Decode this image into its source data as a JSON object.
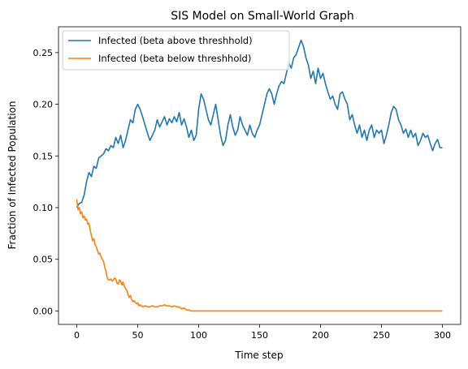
{
  "chart_data": {
    "type": "line",
    "title": "SIS Model on Small-World Graph",
    "xlabel": "Time step",
    "ylabel": "Fraction of Infected Population",
    "xlim": [
      -15,
      315
    ],
    "ylim": [
      -0.013,
      0.275
    ],
    "xticks": [
      0,
      50,
      100,
      150,
      200,
      250,
      300
    ],
    "xtick_labels": [
      "0",
      "50",
      "100",
      "150",
      "200",
      "250",
      "300"
    ],
    "yticks": [
      0.0,
      0.05,
      0.1,
      0.15,
      0.2,
      0.25
    ],
    "ytick_labels": [
      "0.00",
      "0.05",
      "0.10",
      "0.15",
      "0.20",
      "0.25"
    ],
    "grid": false,
    "legend_position": "top-left",
    "series": [
      {
        "name": "Infected (beta above threshhold)",
        "color": "#1f77b4",
        "points": [
          [
            0,
            0.1
          ],
          [
            2,
            0.104
          ],
          [
            4,
            0.105
          ],
          [
            6,
            0.112
          ],
          [
            8,
            0.125
          ],
          [
            10,
            0.134
          ],
          [
            12,
            0.13
          ],
          [
            14,
            0.14
          ],
          [
            16,
            0.138
          ],
          [
            18,
            0.148
          ],
          [
            20,
            0.15
          ],
          [
            22,
            0.152
          ],
          [
            24,
            0.157
          ],
          [
            26,
            0.155
          ],
          [
            28,
            0.16
          ],
          [
            30,
            0.158
          ],
          [
            32,
            0.168
          ],
          [
            34,
            0.162
          ],
          [
            36,
            0.17
          ],
          [
            38,
            0.158
          ],
          [
            40,
            0.165
          ],
          [
            42,
            0.175
          ],
          [
            44,
            0.185
          ],
          [
            46,
            0.182
          ],
          [
            48,
            0.195
          ],
          [
            50,
            0.2
          ],
          [
            52,
            0.195
          ],
          [
            54,
            0.188
          ],
          [
            56,
            0.18
          ],
          [
            58,
            0.172
          ],
          [
            60,
            0.165
          ],
          [
            62,
            0.17
          ],
          [
            64,
            0.175
          ],
          [
            66,
            0.185
          ],
          [
            68,
            0.178
          ],
          [
            70,
            0.183
          ],
          [
            72,
            0.188
          ],
          [
            74,
            0.18
          ],
          [
            76,
            0.186
          ],
          [
            78,
            0.182
          ],
          [
            80,
            0.188
          ],
          [
            82,
            0.183
          ],
          [
            84,
            0.192
          ],
          [
            86,
            0.18
          ],
          [
            88,
            0.186
          ],
          [
            90,
            0.178
          ],
          [
            92,
            0.168
          ],
          [
            94,
            0.175
          ],
          [
            96,
            0.165
          ],
          [
            98,
            0.17
          ],
          [
            100,
            0.195
          ],
          [
            102,
            0.21
          ],
          [
            104,
            0.205
          ],
          [
            106,
            0.195
          ],
          [
            108,
            0.185
          ],
          [
            110,
            0.18
          ],
          [
            112,
            0.19
          ],
          [
            114,
            0.2
          ],
          [
            116,
            0.185
          ],
          [
            118,
            0.17
          ],
          [
            120,
            0.16
          ],
          [
            122,
            0.165
          ],
          [
            124,
            0.18
          ],
          [
            126,
            0.19
          ],
          [
            128,
            0.178
          ],
          [
            130,
            0.17
          ],
          [
            132,
            0.175
          ],
          [
            134,
            0.188
          ],
          [
            136,
            0.18
          ],
          [
            138,
            0.175
          ],
          [
            140,
            0.17
          ],
          [
            142,
            0.18
          ],
          [
            144,
            0.172
          ],
          [
            146,
            0.168
          ],
          [
            148,
            0.175
          ],
          [
            150,
            0.18
          ],
          [
            152,
            0.19
          ],
          [
            154,
            0.2
          ],
          [
            156,
            0.21
          ],
          [
            158,
            0.215
          ],
          [
            160,
            0.21
          ],
          [
            162,
            0.2
          ],
          [
            164,
            0.21
          ],
          [
            166,
            0.218
          ],
          [
            168,
            0.222
          ],
          [
            170,
            0.22
          ],
          [
            172,
            0.23
          ],
          [
            174,
            0.24
          ],
          [
            176,
            0.235
          ],
          [
            178,
            0.245
          ],
          [
            180,
            0.248
          ],
          [
            182,
            0.255
          ],
          [
            184,
            0.262
          ],
          [
            186,
            0.256
          ],
          [
            188,
            0.245
          ],
          [
            190,
            0.238
          ],
          [
            192,
            0.225
          ],
          [
            194,
            0.232
          ],
          [
            196,
            0.22
          ],
          [
            198,
            0.235
          ],
          [
            200,
            0.225
          ],
          [
            202,
            0.23
          ],
          [
            204,
            0.22
          ],
          [
            206,
            0.212
          ],
          [
            208,
            0.205
          ],
          [
            210,
            0.208
          ],
          [
            212,
            0.2
          ],
          [
            214,
            0.195
          ],
          [
            216,
            0.21
          ],
          [
            218,
            0.212
          ],
          [
            220,
            0.205
          ],
          [
            222,
            0.2
          ],
          [
            224,
            0.185
          ],
          [
            226,
            0.19
          ],
          [
            228,
            0.18
          ],
          [
            230,
            0.172
          ],
          [
            232,
            0.18
          ],
          [
            234,
            0.168
          ],
          [
            236,
            0.175
          ],
          [
            238,
            0.165
          ],
          [
            240,
            0.175
          ],
          [
            242,
            0.18
          ],
          [
            244,
            0.168
          ],
          [
            246,
            0.175
          ],
          [
            248,
            0.172
          ],
          [
            250,
            0.175
          ],
          [
            252,
            0.162
          ],
          [
            254,
            0.17
          ],
          [
            256,
            0.18
          ],
          [
            258,
            0.192
          ],
          [
            260,
            0.198
          ],
          [
            262,
            0.195
          ],
          [
            264,
            0.185
          ],
          [
            266,
            0.18
          ],
          [
            268,
            0.172
          ],
          [
            270,
            0.176
          ],
          [
            272,
            0.168
          ],
          [
            274,
            0.175
          ],
          [
            276,
            0.168
          ],
          [
            278,
            0.172
          ],
          [
            280,
            0.16
          ],
          [
            282,
            0.165
          ],
          [
            284,
            0.172
          ],
          [
            286,
            0.168
          ],
          [
            288,
            0.17
          ],
          [
            290,
            0.162
          ],
          [
            292,
            0.155
          ],
          [
            294,
            0.162
          ],
          [
            296,
            0.166
          ],
          [
            298,
            0.158
          ],
          [
            300,
            0.158
          ]
        ]
      },
      {
        "name": "Infected (beta below threshhold)",
        "color": "#ff7f0e",
        "points": [
          [
            0,
            0.108
          ],
          [
            1,
            0.098
          ],
          [
            2,
            0.1
          ],
          [
            3,
            0.094
          ],
          [
            4,
            0.096
          ],
          [
            5,
            0.09
          ],
          [
            6,
            0.092
          ],
          [
            7,
            0.088
          ],
          [
            8,
            0.089
          ],
          [
            9,
            0.084
          ],
          [
            10,
            0.085
          ],
          [
            11,
            0.078
          ],
          [
            12,
            0.073
          ],
          [
            13,
            0.068
          ],
          [
            14,
            0.07
          ],
          [
            15,
            0.064
          ],
          [
            16,
            0.062
          ],
          [
            17,
            0.058
          ],
          [
            18,
            0.055
          ],
          [
            19,
            0.056
          ],
          [
            20,
            0.052
          ],
          [
            21,
            0.05
          ],
          [
            22,
            0.048
          ],
          [
            23,
            0.042
          ],
          [
            24,
            0.038
          ],
          [
            25,
            0.032
          ],
          [
            26,
            0.03
          ],
          [
            27,
            0.03
          ],
          [
            28,
            0.031
          ],
          [
            29,
            0.029
          ],
          [
            30,
            0.03
          ],
          [
            31,
            0.032
          ],
          [
            32,
            0.031
          ],
          [
            33,
            0.027
          ],
          [
            34,
            0.026
          ],
          [
            35,
            0.03
          ],
          [
            36,
            0.029
          ],
          [
            37,
            0.025
          ],
          [
            38,
            0.028
          ],
          [
            39,
            0.024
          ],
          [
            40,
            0.022
          ],
          [
            41,
            0.02
          ],
          [
            42,
            0.016
          ],
          [
            43,
            0.013
          ],
          [
            44,
            0.015
          ],
          [
            45,
            0.011
          ],
          [
            46,
            0.009
          ],
          [
            47,
            0.01
          ],
          [
            48,
            0.008
          ],
          [
            49,
            0.007
          ],
          [
            50,
            0.008
          ],
          [
            51,
            0.005
          ],
          [
            52,
            0.006
          ],
          [
            54,
            0.004
          ],
          [
            56,
            0.005
          ],
          [
            58,
            0.004
          ],
          [
            60,
            0.004
          ],
          [
            62,
            0.005
          ],
          [
            64,
            0.004
          ],
          [
            66,
            0.004
          ],
          [
            68,
            0.005
          ],
          [
            70,
            0.005
          ],
          [
            72,
            0.006
          ],
          [
            74,
            0.005
          ],
          [
            76,
            0.005
          ],
          [
            78,
            0.004
          ],
          [
            80,
            0.005
          ],
          [
            82,
            0.004
          ],
          [
            84,
            0.004
          ],
          [
            86,
            0.002
          ],
          [
            88,
            0.003
          ],
          [
            90,
            0.001
          ],
          [
            92,
            0.001
          ],
          [
            94,
            0.0
          ],
          [
            100,
            0.0
          ],
          [
            150,
            0.0
          ],
          [
            200,
            0.0
          ],
          [
            250,
            0.0
          ],
          [
            300,
            0.0
          ]
        ]
      }
    ]
  }
}
